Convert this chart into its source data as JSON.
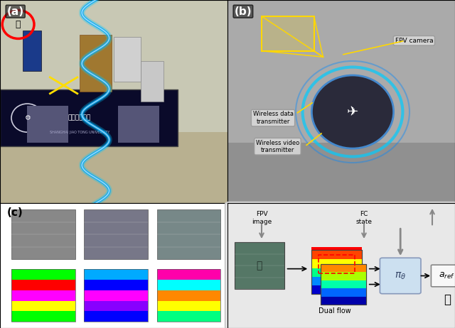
{
  "fig_width": 6.4,
  "fig_height": 4.62,
  "dpi": 100,
  "bg_color": "#f0f0f0",
  "panel_a_label": "(a)",
  "panel_b_label": "(b)",
  "panel_c_label": "(c)",
  "fpv_camera_label": "FPV camera",
  "wireless_data_label": "Wireless data\ntransmitter",
  "wireless_video_label": "Wireless video\ntransmitter",
  "fpv_image_label": "FPV\nimage",
  "fc_state_label": "FC\nstate",
  "dual_flow_label": "Dual flow",
  "pi_label": "πθ",
  "a_ref_label": "a_ref",
  "arrow_color": "#808080",
  "label_color_ab": "#222222",
  "yellow_color": "#FFD700",
  "box_fill": "#d6e8f7",
  "box_edge": "#888888",
  "rounded_box_fill": "#e8e8e8",
  "rounded_box_edge": "#aaaaaa"
}
